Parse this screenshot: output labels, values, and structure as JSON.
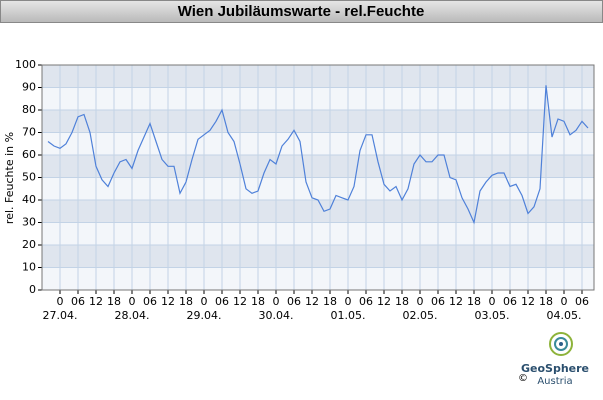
{
  "chart_data": {
    "type": "line",
    "title": "Wien Jubiläumswarte - rel.Feuchte",
    "ylabel": "rel. Feuchte in %",
    "ylim": [
      0,
      100
    ],
    "yticks": [
      0,
      10,
      20,
      30,
      40,
      50,
      60,
      70,
      80,
      90,
      100
    ],
    "xlim": [
      "26.04. 18",
      "04.05. 10"
    ],
    "grid": true,
    "xticks": [
      {
        "value": "27.04. 00",
        "label": "0"
      },
      {
        "value": "27.04. 06",
        "label": "06"
      },
      {
        "value": "27.04. 12",
        "label": "12"
      },
      {
        "value": "27.04. 18",
        "label": "18"
      },
      {
        "value": "28.04. 00",
        "label": "0"
      },
      {
        "value": "28.04. 06",
        "label": "06"
      },
      {
        "value": "28.04. 12",
        "label": "12"
      },
      {
        "value": "28.04. 18",
        "label": "18"
      },
      {
        "value": "29.04. 00",
        "label": "0"
      },
      {
        "value": "29.04. 06",
        "label": "06"
      },
      {
        "value": "29.04. 12",
        "label": "12"
      },
      {
        "value": "29.04. 18",
        "label": "18"
      },
      {
        "value": "30.04. 00",
        "label": "0"
      },
      {
        "value": "30.04. 06",
        "label": "06"
      },
      {
        "value": "30.04. 12",
        "label": "12"
      },
      {
        "value": "30.04. 18",
        "label": "18"
      },
      {
        "value": "01.05. 00",
        "label": "0"
      },
      {
        "value": "01.05. 06",
        "label": "06"
      },
      {
        "value": "01.05. 12",
        "label": "12"
      },
      {
        "value": "01.05. 18",
        "label": "18"
      },
      {
        "value": "02.05. 00",
        "label": "0"
      },
      {
        "value": "02.05. 06",
        "label": "06"
      },
      {
        "value": "02.05. 12",
        "label": "12"
      },
      {
        "value": "02.05. 18",
        "label": "18"
      },
      {
        "value": "03.05. 00",
        "label": "0"
      },
      {
        "value": "03.05. 06",
        "label": "06"
      },
      {
        "value": "03.05. 12",
        "label": "12"
      },
      {
        "value": "03.05. 18",
        "label": "18"
      },
      {
        "value": "04.05. 00",
        "label": "0"
      },
      {
        "value": "04.05. 06",
        "label": "06"
      }
    ],
    "date_labels": [
      {
        "value": "27.04. 00",
        "label": "27.04."
      },
      {
        "value": "28.04. 00",
        "label": "28.04."
      },
      {
        "value": "29.04. 00",
        "label": "29.04."
      },
      {
        "value": "30.04. 00",
        "label": "30.04."
      },
      {
        "value": "01.05. 00",
        "label": "01.05."
      },
      {
        "value": "02.05. 00",
        "label": "02.05."
      },
      {
        "value": "03.05. 00",
        "label": "03.05."
      },
      {
        "value": "04.05. 00",
        "label": "04.05."
      }
    ],
    "x": [
      "26.04. 20",
      "26.04. 22",
      "27.04. 00",
      "27.04. 02",
      "27.04. 04",
      "27.04. 06",
      "27.04. 08",
      "27.04. 10",
      "27.04. 12",
      "27.04. 14",
      "27.04. 16",
      "27.04. 18",
      "27.04. 20",
      "27.04. 22",
      "28.04. 00",
      "28.04. 02",
      "28.04. 04",
      "28.04. 06",
      "28.04. 08",
      "28.04. 10",
      "28.04. 12",
      "28.04. 14",
      "28.04. 16",
      "28.04. 18",
      "28.04. 20",
      "28.04. 22",
      "29.04. 00",
      "29.04. 02",
      "29.04. 04",
      "29.04. 06",
      "29.04. 08",
      "29.04. 10",
      "29.04. 12",
      "29.04. 14",
      "29.04. 16",
      "29.04. 18",
      "29.04. 20",
      "29.04. 22",
      "30.04. 00",
      "30.04. 02",
      "30.04. 04",
      "30.04. 06",
      "30.04. 08",
      "30.04. 10",
      "30.04. 12",
      "30.04. 14",
      "30.04. 16",
      "30.04. 18",
      "30.04. 20",
      "30.04. 22",
      "01.05. 00",
      "01.05. 02",
      "01.05. 04",
      "01.05. 06",
      "01.05. 08",
      "01.05. 10",
      "01.05. 12",
      "01.05. 14",
      "01.05. 16",
      "01.05. 18",
      "01.05. 20",
      "01.05. 22",
      "02.05. 00",
      "02.05. 02",
      "02.05. 04",
      "02.05. 06",
      "02.05. 08",
      "02.05. 10",
      "02.05. 12",
      "02.05. 14",
      "02.05. 16",
      "02.05. 18",
      "02.05. 20",
      "02.05. 22",
      "03.05. 00",
      "03.05. 02",
      "03.05. 04",
      "03.05. 06",
      "03.05. 08",
      "03.05. 10",
      "03.05. 12",
      "03.05. 14",
      "03.05. 16",
      "03.05. 18",
      "03.05. 20",
      "03.05. 22",
      "04.05. 00",
      "04.05. 02",
      "04.05. 04",
      "04.05. 06",
      "04.05. 08"
    ],
    "series": [
      {
        "name": "rel. Feuchte",
        "color": "#4f81d9",
        "values": [
          66,
          64,
          63,
          65,
          70,
          77,
          78,
          70,
          55,
          49,
          46,
          52,
          57,
          58,
          54,
          62,
          68,
          74,
          66,
          58,
          55,
          55,
          43,
          48,
          58,
          67,
          69,
          71,
          75,
          80,
          70,
          66,
          56,
          45,
          43,
          44,
          52,
          58,
          56,
          64,
          67,
          71,
          66,
          48,
          41,
          40,
          35,
          36,
          42,
          41,
          40,
          46,
          62,
          69,
          69,
          57,
          47,
          44,
          46,
          40,
          45,
          56,
          60,
          57,
          57,
          60,
          60,
          50,
          49,
          41,
          36,
          30,
          44,
          48,
          51,
          52,
          52,
          46,
          47,
          42,
          34,
          37,
          45,
          91,
          68,
          76,
          75,
          69,
          71,
          75,
          72
        ]
      }
    ],
    "logo": {
      "name": "GeoSphere",
      "sub": "Austria",
      "copyright": "©"
    }
  }
}
